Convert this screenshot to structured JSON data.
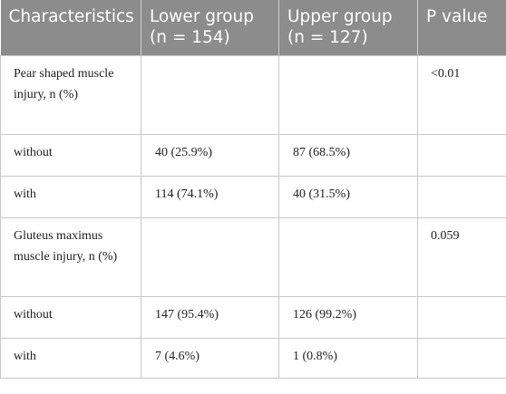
{
  "header": {
    "col1": "Characteristics",
    "col2_line1": "Lower group",
    "col2_line2": "(n = 154)",
    "col3_line1": "Upper group",
    "col3_line2": "(n = 127)",
    "col4": "P value"
  },
  "rows": [
    {
      "label": "Pear shaped muscle injury, n (%)",
      "lower": "",
      "upper": "",
      "p": "<0.01"
    },
    {
      "label": "without",
      "lower": "40 (25.9%)",
      "upper": "87 (68.5%)",
      "p": ""
    },
    {
      "label": "with",
      "lower": "114 (74.1%)",
      "upper": "40 (31.5%)",
      "p": ""
    },
    {
      "label": "Gluteus maximus muscle injury, n (%)",
      "lower": "",
      "upper": "",
      "p": "0.059"
    },
    {
      "label": "without",
      "lower": "147 (95.4%)",
      "upper": "126 (99.2%)",
      "p": ""
    },
    {
      "label": "with",
      "lower": "7 (4.6%)",
      "upper": "1 (0.8%)",
      "p": ""
    }
  ]
}
